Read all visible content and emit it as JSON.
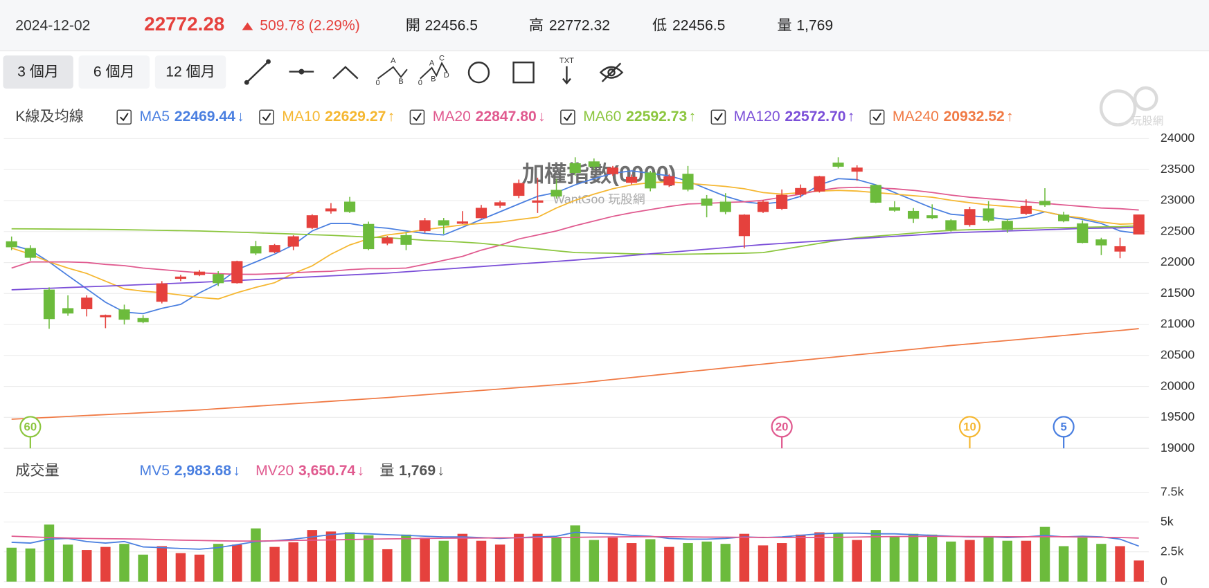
{
  "header": {
    "date": "2024-12-02",
    "price": "22772.28",
    "change": "509.78 (2.29%)",
    "open_label": "開",
    "open": "22456.5",
    "high_label": "高",
    "high": "22772.32",
    "low_label": "低",
    "low": "22456.5",
    "volume_label": "量",
    "volume": "1,769"
  },
  "toolbar": {
    "ranges": [
      "3 個月",
      "6 個月",
      "12 個月"
    ],
    "selected": 0,
    "icon_texts": [
      "A",
      "0",
      "B",
      "A",
      "C",
      "0",
      "B",
      "D",
      "TXT"
    ]
  },
  "logo": "玩股網",
  "chart_data": [
    {
      "type": "candlestick",
      "title": "加權指數(0000)",
      "subtitle": "WantGoo 玩股網",
      "legend_title": "K線及均線",
      "up_color": "#e5413d",
      "down_color": "#6cbb3c",
      "ylim": [
        19000,
        24000
      ],
      "yticks": [
        19000,
        19500,
        20000,
        20500,
        21000,
        21500,
        22000,
        22500,
        23000,
        23500,
        24000
      ],
      "grid": true,
      "open": [
        22340,
        22230,
        21560,
        21260,
        21250,
        21120,
        21240,
        21100,
        21370,
        21740,
        21800,
        21810,
        21670,
        22260,
        22170,
        22260,
        22560,
        22830,
        22980,
        22620,
        22310,
        22440,
        22510,
        22680,
        22630,
        22720,
        22920,
        23080,
        22970,
        23170,
        23600,
        23630,
        23430,
        23290,
        23450,
        23250,
        23430,
        23030,
        22980,
        22430,
        22820,
        22870,
        23100,
        23150,
        23610,
        23470,
        23250,
        22890,
        22830,
        22760,
        22680,
        22610,
        22870,
        22670,
        22790,
        22990,
        22770,
        22630,
        22370,
        22180,
        22456.5
      ],
      "high": [
        22420,
        22280,
        21600,
        21470,
        21470,
        21160,
        21320,
        21150,
        21700,
        21800,
        21880,
        21860,
        22030,
        22350,
        22300,
        22440,
        22780,
        22960,
        23060,
        22660,
        22430,
        22490,
        22720,
        22720,
        22830,
        22930,
        23000,
        23340,
        23370,
        23350,
        23700,
        23680,
        23560,
        23420,
        23480,
        23430,
        23560,
        23090,
        23120,
        22780,
        23010,
        23180,
        23260,
        23400,
        23700,
        23570,
        23260,
        22990,
        22880,
        22940,
        22700,
        22900,
        22990,
        22700,
        23020,
        23200,
        22820,
        22680,
        22400,
        22400,
        22772.32
      ],
      "low": [
        22200,
        22030,
        20930,
        21140,
        21130,
        20940,
        21000,
        21020,
        21340,
        21700,
        21780,
        21620,
        21660,
        22120,
        22150,
        22200,
        22540,
        22790,
        22800,
        22200,
        22280,
        22200,
        22480,
        22460,
        22620,
        22710,
        22880,
        23040,
        22800,
        23030,
        23400,
        23500,
        23400,
        23260,
        23150,
        23220,
        23150,
        22730,
        22780,
        22230,
        22800,
        22850,
        23050,
        23130,
        23520,
        23320,
        22960,
        22820,
        22640,
        22700,
        22500,
        22580,
        22650,
        22480,
        22770,
        22900,
        22650,
        22310,
        22120,
        22070,
        22456.5
      ],
      "close": [
        22250,
        22080,
        21090,
        21180,
        21430,
        21150,
        21080,
        21040,
        21660,
        21770,
        21850,
        21670,
        22020,
        22150,
        22280,
        22420,
        22760,
        22870,
        22820,
        22220,
        22400,
        22290,
        22680,
        22600,
        22660,
        22880,
        22970,
        23280,
        23000,
        23070,
        23450,
        23550,
        23530,
        23380,
        23200,
        23390,
        23180,
        22920,
        22820,
        22770,
        22980,
        23090,
        23200,
        23390,
        23550,
        23530,
        22970,
        22840,
        22710,
        22720,
        22530,
        22860,
        22680,
        22530,
        22910,
        22930,
        22670,
        22320,
        22280,
        22260,
        22772.28
      ],
      "series": [
        {
          "name": "MA5",
          "period": 5,
          "color": "#4a7fe0",
          "trend": "↓",
          "value_label": "22469.44",
          "values": [
            22283,
            22200,
            22010,
            21790,
            21575,
            21360,
            21200,
            21175,
            21260,
            21325,
            21510,
            21660,
            21885,
            22010,
            22135,
            22285,
            22510,
            22630,
            22630,
            22580,
            22555,
            22510,
            22470,
            22445,
            22570,
            22695,
            22820,
            22945,
            23070,
            23130,
            23255,
            23355,
            23440,
            23480,
            23440,
            23400,
            23315,
            23190,
            23070,
            22980,
            22945,
            22980,
            23070,
            23255,
            23355,
            23340,
            23255,
            23130,
            23005,
            22880,
            22780,
            22755,
            22730,
            22695,
            22730,
            22820,
            22755,
            22695,
            22630,
            22510,
            22469.44
          ]
        },
        {
          "name": "MA10",
          "period": 10,
          "color": "#f5b731",
          "trend": "↑",
          "value_label": "22629.27",
          "values": [
            22234,
            22134,
            22010,
            21910,
            21823,
            21699,
            21575,
            21537,
            21512,
            21475,
            21437,
            21412,
            21512,
            21599,
            21674,
            21823,
            21947,
            22134,
            22283,
            22383,
            22445,
            22482,
            22532,
            22569,
            22607,
            22632,
            22656,
            22694,
            22731,
            22880,
            23005,
            23104,
            23191,
            23254,
            23291,
            23303,
            23278,
            23254,
            23229,
            23191,
            23129,
            23104,
            23129,
            23154,
            23166,
            23154,
            23129,
            23104,
            23079,
            23055,
            23005,
            22967,
            22930,
            22905,
            22880,
            22818,
            22756,
            22719,
            22656,
            22619,
            22629.27
          ]
        },
        {
          "name": "MA20",
          "period": 20,
          "color": "#e05a8f",
          "trend": "↓",
          "value_label": "22847.80",
          "values": [
            21910,
            22010,
            22010,
            22010,
            22000,
            21970,
            21950,
            21910,
            21885,
            21860,
            21835,
            21820,
            21810,
            21810,
            21820,
            21835,
            21850,
            21860,
            21885,
            21900,
            21900,
            21910,
            21970,
            22035,
            22100,
            22200,
            22280,
            22380,
            22445,
            22510,
            22595,
            22670,
            22745,
            22805,
            22855,
            22905,
            22945,
            22955,
            22970,
            22980,
            23005,
            23055,
            23105,
            23165,
            23205,
            23215,
            23205,
            23190,
            23165,
            23130,
            23090,
            23055,
            23030,
            23005,
            22980,
            22955,
            22930,
            22905,
            22880,
            22870,
            22847.8
          ]
        },
        {
          "name": "MA60",
          "period": 60,
          "color": "#8cc63f",
          "trend": "↑",
          "value_label": "22592.73",
          "values": [
            22545,
            22543,
            22541,
            22539,
            22537,
            22535,
            22530,
            22525,
            22520,
            22515,
            22510,
            22500,
            22490,
            22480,
            22470,
            22460,
            22450,
            22440,
            22425,
            22410,
            22400,
            22380,
            22360,
            22345,
            22330,
            22310,
            22280,
            22250,
            22220,
            22190,
            22160,
            22155,
            22150,
            22140,
            22135,
            22130,
            22135,
            22140,
            22145,
            22150,
            22160,
            22210,
            22260,
            22310,
            22360,
            22400,
            22425,
            22450,
            22475,
            22500,
            22520,
            22530,
            22535,
            22545,
            22550,
            22560,
            22565,
            22570,
            22575,
            22580,
            22592.73
          ]
        },
        {
          "name": "MA120",
          "period": 120,
          "color": "#7b4fd8",
          "trend": "↑",
          "value_label": "22572.70",
          "values": [
            21560,
            21572,
            21584,
            21596,
            21608,
            21620,
            21632,
            21644,
            21656,
            21668,
            21680,
            21695,
            21710,
            21725,
            21740,
            21755,
            21770,
            21785,
            21800,
            21815,
            21830,
            21851,
            21872,
            21893,
            21914,
            21935,
            21956,
            21977,
            21998,
            22019,
            22040,
            22065,
            22090,
            22115,
            22140,
            22165,
            22190,
            22215,
            22240,
            22265,
            22290,
            22309,
            22328,
            22347,
            22366,
            22385,
            22404,
            22423,
            22442,
            22461,
            22480,
            22490,
            22500,
            22510,
            22520,
            22530,
            22540,
            22550,
            22555,
            22560,
            22572.7
          ]
        },
        {
          "name": "MA240",
          "period": 240,
          "color": "#f07a45",
          "trend": "↑",
          "value_label": "20932.52",
          "values": [
            19470,
            19485,
            19500,
            19515,
            19530,
            19545,
            19560,
            19575,
            19590,
            19605,
            19620,
            19640,
            19660,
            19680,
            19700,
            19720,
            19740,
            19760,
            19780,
            19800,
            19820,
            19843,
            19866,
            19889,
            19912,
            19935,
            19958,
            19981,
            20004,
            20027,
            20050,
            20081,
            20112,
            20143,
            20174,
            20205,
            20236,
            20267,
            20298,
            20329,
            20360,
            20390,
            20420,
            20450,
            20480,
            20510,
            20540,
            20570,
            20600,
            20630,
            20660,
            20687,
            20714,
            20741,
            20768,
            20795,
            20822,
            20849,
            20876,
            20903,
            20932.52
          ]
        }
      ]
    },
    {
      "type": "bar",
      "legend_title": "成交量",
      "ylim": [
        0,
        7500
      ],
      "yticks": [
        0,
        {
          "value": 2500,
          "label": "2.5k"
        },
        {
          "value": 5000,
          "label": "5k"
        },
        {
          "value": 7500,
          "label": "7.5k"
        }
      ],
      "grid": true,
      "series": [
        {
          "name": "MV5",
          "type": "line",
          "color": "#4a7fe0",
          "trend": "↓",
          "value_label": "2,983.68",
          "values": [
            3300,
            3230,
            3560,
            3620,
            3360,
            3230,
            3360,
            2910,
            2850,
            2780,
            2720,
            2850,
            3100,
            3360,
            3430,
            3560,
            3750,
            3940,
            4070,
            4010,
            3940,
            3880,
            3810,
            3750,
            3750,
            3690,
            3620,
            3690,
            3750,
            3810,
            4140,
            4070,
            4010,
            3880,
            3810,
            3620,
            3560,
            3560,
            3620,
            3750,
            3690,
            3750,
            3880,
            4010,
            4070,
            4070,
            4010,
            4010,
            3940,
            3880,
            3810,
            3750,
            3750,
            3690,
            3750,
            3880,
            3750,
            3810,
            3750,
            3560,
            2983.68
          ]
        },
        {
          "name": "MV20",
          "type": "line",
          "color": "#e05a8f",
          "trend": "↓",
          "value_label": "3,650.74",
          "values": [
            3810,
            3750,
            3700,
            3650,
            3620,
            3600,
            3580,
            3560,
            3520,
            3480,
            3450,
            3420,
            3400,
            3400,
            3420,
            3450,
            3480,
            3500,
            3530,
            3560,
            3580,
            3600,
            3620,
            3640,
            3650,
            3660,
            3670,
            3680,
            3690,
            3700,
            3720,
            3740,
            3750,
            3760,
            3770,
            3760,
            3750,
            3740,
            3730,
            3720,
            3710,
            3700,
            3700,
            3710,
            3720,
            3740,
            3760,
            3780,
            3790,
            3800,
            3790,
            3780,
            3770,
            3760,
            3760,
            3770,
            3760,
            3740,
            3720,
            3700,
            3650.74
          ]
        },
        {
          "name": "量",
          "type": "bar",
          "color": "#555555",
          "trend": "↓",
          "value_label": "1,769",
          "values": [
            2845,
            2780,
            4785,
            3104,
            2651,
            2910,
            3168,
            2263,
            2974,
            2392,
            2263,
            3168,
            3104,
            4462,
            2910,
            3298,
            4332,
            4203,
            4138,
            3880,
            2716,
            3944,
            3686,
            3427,
            4009,
            3427,
            3104,
            4009,
            4009,
            3686,
            4720,
            3492,
            3686,
            3233,
            3556,
            2910,
            3233,
            3362,
            3168,
            4009,
            3039,
            3233,
            3944,
            4138,
            4074,
            3492,
            4332,
            3750,
            4009,
            3944,
            3362,
            3492,
            3750,
            3427,
            3427,
            4591,
            2974,
            3686,
            3168,
            2974,
            1769
          ]
        }
      ]
    }
  ]
}
